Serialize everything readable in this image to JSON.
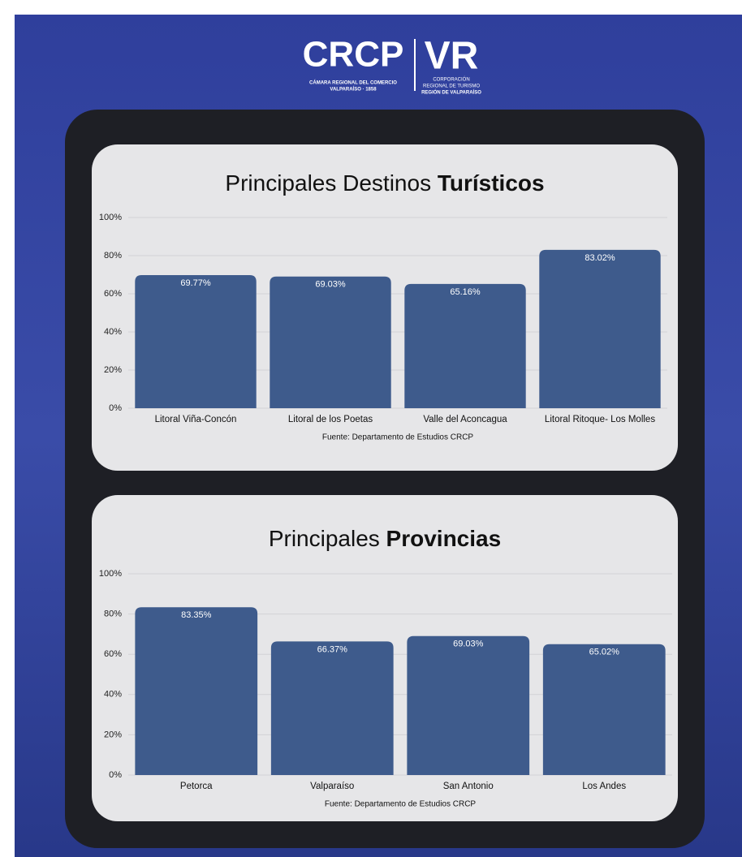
{
  "header": {
    "logo_left": "CRCP",
    "logo_left_caption_1": "CÁMARA REGIONAL DEL COMERCIO",
    "logo_left_caption_2": "VALPARAÍSO · 1858",
    "logo_right": "VR",
    "logo_right_caption_1": "CORPORACIÓN",
    "logo_right_caption_2": "REGIONAL DE TURISMO",
    "logo_right_caption_3": "REGIÓN DE VALPARAÍSO"
  },
  "chart_data": [
    {
      "type": "bar",
      "title": "Principales Destinos Turísticos",
      "source": "Fuente: Departamento de Estudios CRCP",
      "categories": [
        "Litoral Viña-Concón",
        "Litoral de los Poetas",
        "Valle del Aconcagua",
        "Litoral Ritoque- Los Molles"
      ],
      "values": [
        69.77,
        69.03,
        65.16,
        83.02
      ],
      "value_labels": [
        "69.77%",
        "69.03%",
        "65.16%",
        "83.02%"
      ],
      "color": "#3e5b8c",
      "grid": true,
      "ylim": [
        0,
        100
      ],
      "yticks": [
        {
          "value": 0,
          "label": "0%"
        },
        {
          "value": 20,
          "label": "20%"
        },
        {
          "value": 40,
          "label": "40%"
        },
        {
          "value": 60,
          "label": "60%"
        },
        {
          "value": 80,
          "label": "80%"
        },
        {
          "value": 100,
          "label": "100%"
        }
      ]
    },
    {
      "type": "bar",
      "title": "Principales Provincias",
      "source": "Fuente: Departamento de Estudios CRCP",
      "categories": [
        "Petorca",
        "Valparaíso",
        "San Antonio",
        "Los Andes"
      ],
      "values": [
        83.35,
        66.37,
        69.03,
        65.02
      ],
      "value_labels": [
        "83.35%",
        "66.37%",
        "69.03%",
        "65.02%"
      ],
      "color": "#3e5b8c",
      "grid": true,
      "ylim": [
        0,
        100
      ],
      "yticks": [
        {
          "value": 0,
          "label": "0%"
        },
        {
          "value": 20,
          "label": "20%"
        },
        {
          "value": 40,
          "label": "40%"
        },
        {
          "value": 60,
          "label": "60%"
        },
        {
          "value": 80,
          "label": "80%"
        },
        {
          "value": 100,
          "label": "100%"
        }
      ]
    }
  ]
}
